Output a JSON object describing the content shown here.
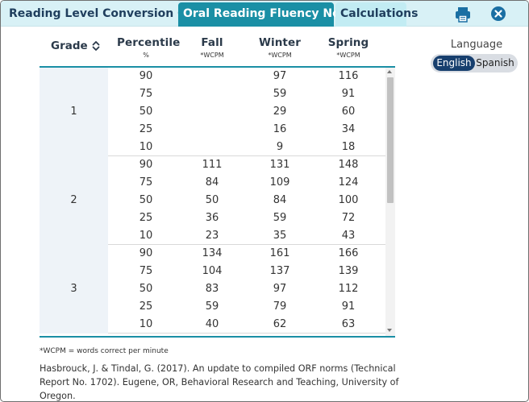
{
  "tabs": [
    {
      "label": "Reading Level Conversion Guide",
      "active": false
    },
    {
      "label": "Oral Reading Fluency Norms",
      "active": true
    },
    {
      "label": "Calculations",
      "active": false
    }
  ],
  "toolbar": {
    "print_icon": "print-icon",
    "close_icon": "close-icon"
  },
  "colors": {
    "active_tab": "#1a8fa5",
    "tabbar": "#d8f1f6",
    "toggle_active": "#173f6e",
    "grade_cell": "#eef3f8",
    "rule": "#1a8fa5"
  },
  "table": {
    "headers": {
      "grade": "Grade",
      "percentile": "Percentile",
      "percentile_sub": "%",
      "fall": "Fall",
      "fall_sub": "*WCPM",
      "winter": "Winter",
      "winter_sub": "*WCPM",
      "spring": "Spring",
      "spring_sub": "*WCPM"
    },
    "grades": [
      {
        "grade": "1",
        "rows": [
          {
            "percentile": "90",
            "fall": "",
            "winter": "97",
            "spring": "116"
          },
          {
            "percentile": "75",
            "fall": "",
            "winter": "59",
            "spring": "91"
          },
          {
            "percentile": "50",
            "fall": "",
            "winter": "29",
            "spring": "60"
          },
          {
            "percentile": "25",
            "fall": "",
            "winter": "16",
            "spring": "34"
          },
          {
            "percentile": "10",
            "fall": "",
            "winter": "9",
            "spring": "18"
          }
        ]
      },
      {
        "grade": "2",
        "rows": [
          {
            "percentile": "90",
            "fall": "111",
            "winter": "131",
            "spring": "148"
          },
          {
            "percentile": "75",
            "fall": "84",
            "winter": "109",
            "spring": "124"
          },
          {
            "percentile": "50",
            "fall": "50",
            "winter": "84",
            "spring": "100"
          },
          {
            "percentile": "25",
            "fall": "36",
            "winter": "59",
            "spring": "72"
          },
          {
            "percentile": "10",
            "fall": "23",
            "winter": "35",
            "spring": "43"
          }
        ]
      },
      {
        "grade": "3",
        "rows": [
          {
            "percentile": "90",
            "fall": "134",
            "winter": "161",
            "spring": "166"
          },
          {
            "percentile": "75",
            "fall": "104",
            "winter": "137",
            "spring": "139"
          },
          {
            "percentile": "50",
            "fall": "83",
            "winter": "97",
            "spring": "112"
          },
          {
            "percentile": "25",
            "fall": "59",
            "winter": "79",
            "spring": "91"
          },
          {
            "percentile": "10",
            "fall": "40",
            "winter": "62",
            "spring": "63"
          }
        ]
      }
    ]
  },
  "language": {
    "label": "Language",
    "options": [
      "English",
      "Spanish"
    ],
    "selected": "English"
  },
  "footnote": "*WCPM = words correct per minute",
  "citation": "Hasbrouck, J. & Tindal, G. (2017). An update to compiled ORF norms (Technical Report No. 1702). Eugene, OR, Behavioral Research and Teaching, University of Oregon."
}
